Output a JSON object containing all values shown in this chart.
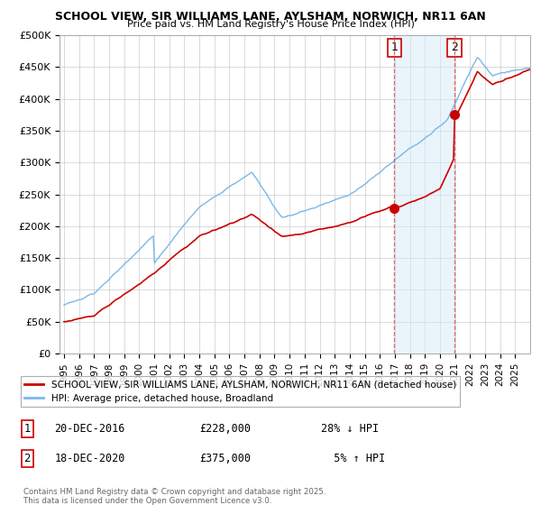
{
  "title_line1": "SCHOOL VIEW, SIR WILLIAMS LANE, AYLSHAM, NORWICH, NR11 6AN",
  "title_line2": "Price paid vs. HM Land Registry's House Price Index (HPI)",
  "ylim": [
    0,
    500000
  ],
  "yticks": [
    0,
    50000,
    100000,
    150000,
    200000,
    250000,
    300000,
    350000,
    400000,
    450000,
    500000
  ],
  "ytick_labels": [
    "£0",
    "£50K",
    "£100K",
    "£150K",
    "£200K",
    "£250K",
    "£300K",
    "£350K",
    "£400K",
    "£450K",
    "£500K"
  ],
  "hpi_color": "#7ab8e8",
  "hpi_fill_color": "#d6eaf8",
  "price_color": "#cc0000",
  "marker1_year": 2016.97,
  "marker1_price": 228000,
  "marker2_year": 2020.97,
  "marker2_price": 375000,
  "legend_label_red": "SCHOOL VIEW, SIR WILLIAMS LANE, AYLSHAM, NORWICH, NR11 6AN (detached house)",
  "legend_label_blue": "HPI: Average price, detached house, Broadland",
  "footer": "Contains HM Land Registry data © Crown copyright and database right 2025.\nThis data is licensed under the Open Government Licence v3.0.",
  "background_color": "#ffffff",
  "grid_color": "#cccccc",
  "xlim_left": 1994.7,
  "xlim_right": 2026.0
}
